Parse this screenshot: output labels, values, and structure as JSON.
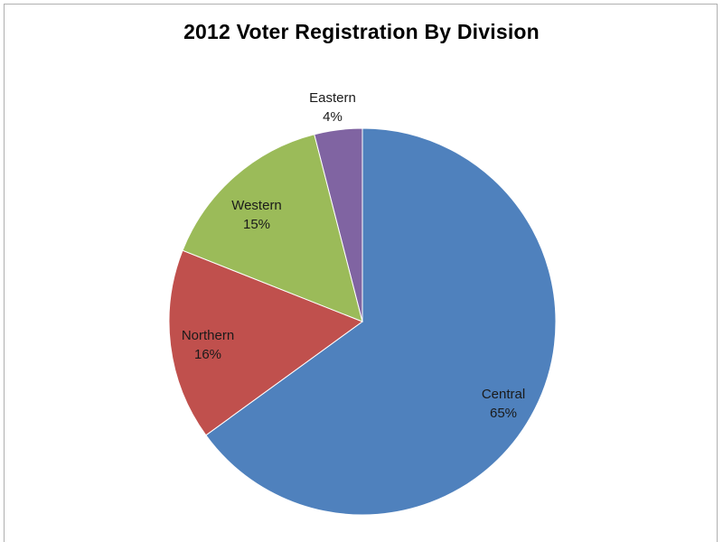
{
  "chart_data": {
    "type": "pie",
    "title": "2012 Voter Registration By Division",
    "slices": [
      {
        "label": "Central",
        "value": 65,
        "display": "65%",
        "color": "#4f81bd"
      },
      {
        "label": "Northern",
        "value": 16,
        "display": "16%",
        "color": "#c0504d"
      },
      {
        "label": "Western",
        "value": 15,
        "display": "15%",
        "color": "#9bbb59"
      },
      {
        "label": "Eastern",
        "value": 4,
        "display": "4%",
        "color": "#8064a2"
      }
    ],
    "start": "12 o'clock",
    "direction": "clockwise",
    "legend": "none",
    "data_labels": "category name and percentage"
  }
}
